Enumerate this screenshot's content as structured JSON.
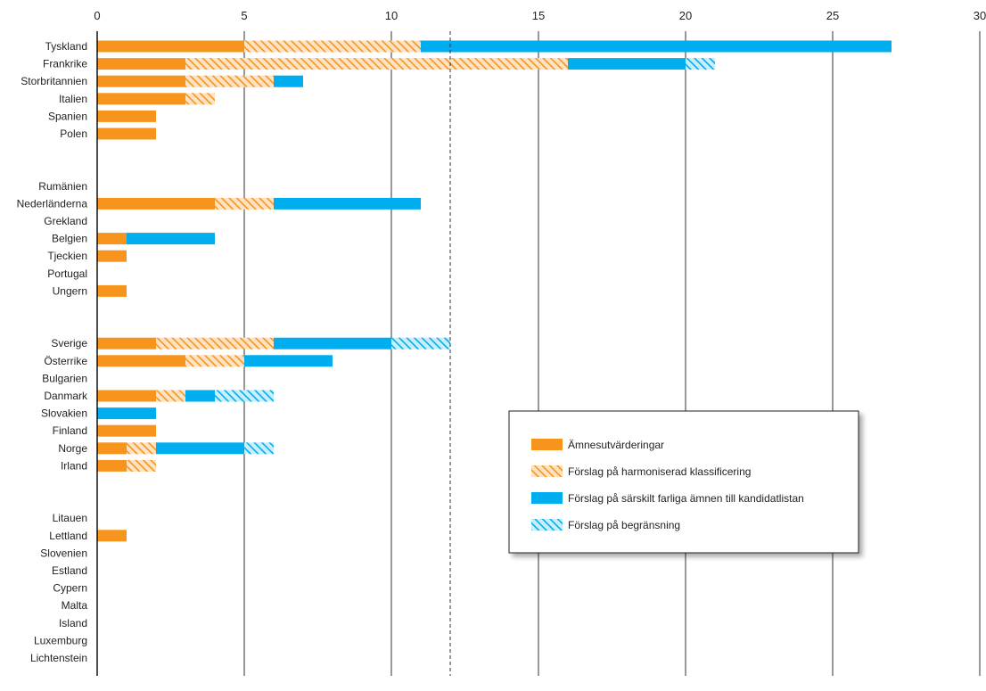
{
  "chart_data": {
    "type": "bar",
    "stacked": true,
    "orientation": "horizontal",
    "xlim": [
      0,
      30
    ],
    "xticks": [
      0,
      5,
      10,
      15,
      20,
      25,
      30
    ],
    "reference_line": 12,
    "grid": "vertical lines at major ticks",
    "legend_placement": "right-center",
    "colors": {
      "orange": "#F7941D",
      "blue": "#00AEEF"
    },
    "series": [
      {
        "name": "Ämnesutvärderingar",
        "color": "#F7941D",
        "pattern": "solid"
      },
      {
        "name": "Förslag på harmoniserad klassificering",
        "color": "#F7941D",
        "pattern": "hatched"
      },
      {
        "name": "Förslag på särskilt farliga ämnen till kandidatlistan",
        "color": "#00AEEF",
        "pattern": "solid"
      },
      {
        "name": "Förslag på begränsning",
        "color": "#00AEEF",
        "pattern": "hatched"
      }
    ],
    "groups": [
      [
        {
          "label": "Tyskland",
          "values": [
            5,
            6,
            16,
            0
          ]
        },
        {
          "label": "Frankrike",
          "values": [
            3,
            13,
            4,
            1
          ]
        },
        {
          "label": "Storbritannien",
          "values": [
            3,
            3,
            1,
            0
          ]
        },
        {
          "label": "Italien",
          "values": [
            3,
            1,
            0,
            0
          ]
        },
        {
          "label": "Spanien",
          "values": [
            2,
            0,
            0,
            0
          ]
        },
        {
          "label": "Polen",
          "values": [
            2,
            0,
            0,
            0
          ]
        }
      ],
      [
        {
          "label": "Rumänien",
          "values": [
            0,
            0,
            0,
            0
          ]
        },
        {
          "label": "Nederländerna",
          "values": [
            4,
            2,
            5,
            0
          ]
        },
        {
          "label": "Grekland",
          "values": [
            0,
            0,
            0,
            0
          ]
        },
        {
          "label": "Belgien",
          "values": [
            1,
            0,
            3,
            0
          ]
        },
        {
          "label": "Tjeckien",
          "values": [
            1,
            0,
            0,
            0
          ]
        },
        {
          "label": "Portugal",
          "values": [
            0,
            0,
            0,
            0
          ]
        },
        {
          "label": "Ungern",
          "values": [
            1,
            0,
            0,
            0
          ]
        }
      ],
      [
        {
          "label": "Sverige",
          "values": [
            2,
            4,
            4,
            2
          ]
        },
        {
          "label": "Österrike",
          "values": [
            3,
            2,
            3,
            0
          ]
        },
        {
          "label": "Bulgarien",
          "values": [
            0,
            0,
            0,
            0
          ]
        },
        {
          "label": "Danmark",
          "values": [
            2,
            1,
            1,
            2
          ]
        },
        {
          "label": "Slovakien",
          "values": [
            0,
            0,
            2,
            0
          ]
        },
        {
          "label": "Finland",
          "values": [
            2,
            0,
            0,
            0
          ]
        },
        {
          "label": "Norge",
          "values": [
            1,
            1,
            3,
            1
          ]
        },
        {
          "label": "Irland",
          "values": [
            1,
            1,
            0,
            0
          ]
        }
      ],
      [
        {
          "label": "Litauen",
          "values": [
            0,
            0,
            0,
            0
          ]
        },
        {
          "label": "Lettland",
          "values": [
            1,
            0,
            0,
            0
          ]
        },
        {
          "label": "Slovenien",
          "values": [
            0,
            0,
            0,
            0
          ]
        },
        {
          "label": "Estland",
          "values": [
            0,
            0,
            0,
            0
          ]
        },
        {
          "label": "Cypern",
          "values": [
            0,
            0,
            0,
            0
          ]
        },
        {
          "label": "Malta",
          "values": [
            0,
            0,
            0,
            0
          ]
        },
        {
          "label": "Island",
          "values": [
            0,
            0,
            0,
            0
          ]
        },
        {
          "label": "Luxemburg",
          "values": [
            0,
            0,
            0,
            0
          ]
        },
        {
          "label": "Lichtenstein",
          "values": [
            0,
            0,
            0,
            0
          ]
        }
      ]
    ]
  }
}
